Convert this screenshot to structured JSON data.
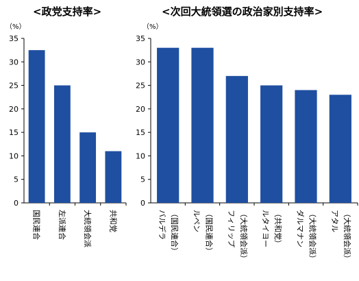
{
  "chart_data": [
    {
      "type": "bar",
      "title": "<政党支持率>",
      "ylabel": "（%）",
      "ylim": [
        0,
        35
      ],
      "yticks": [
        0,
        5,
        10,
        15,
        20,
        25,
        30,
        35
      ],
      "categories": [
        "国民連合",
        "左派連合",
        "大統領会派",
        "共和党"
      ],
      "values": [
        32.5,
        25,
        15,
        11
      ],
      "bar_color": "#1f4fa0",
      "grid": false
    },
    {
      "type": "bar",
      "title": "<次回大統領選の政治家別支持率>",
      "ylabel": "（%）",
      "ylim": [
        0,
        35
      ],
      "yticks": [
        0,
        5,
        10,
        15,
        20,
        25,
        30,
        35
      ],
      "categories": [
        [
          "バルデラ",
          "（国民連合）"
        ],
        [
          "ルペン",
          "（国民連合）"
        ],
        [
          "フィリップ",
          "（大統領会派）"
        ],
        [
          "ルタイヨー",
          "（共和党）"
        ],
        [
          "ダルマナン",
          "（大統領会派）"
        ],
        [
          "アタル",
          "（大統領会派）"
        ]
      ],
      "values": [
        33,
        33,
        27,
        25,
        24,
        23
      ],
      "bar_color": "#1f4fa0",
      "grid": false
    }
  ]
}
